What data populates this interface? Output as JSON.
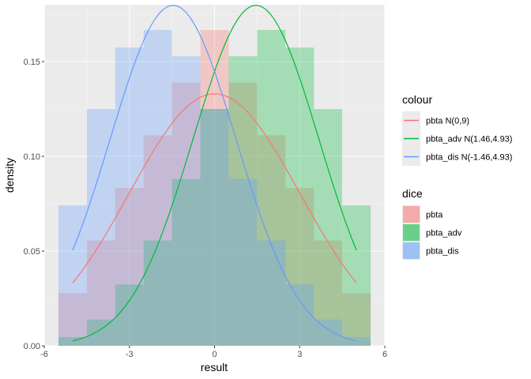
{
  "chart_data": {
    "type": "histogram+line",
    "xlabel": "result",
    "ylabel": "density",
    "xlim": [
      -6,
      6
    ],
    "ylim": [
      0,
      0.18
    ],
    "x_ticks": [
      {
        "v": -6,
        "label": "-6"
      },
      {
        "v": -3,
        "label": "-3"
      },
      {
        "v": 0,
        "label": "0"
      },
      {
        "v": 3,
        "label": "3"
      },
      {
        "v": 6,
        "label": "6"
      }
    ],
    "y_ticks": [
      {
        "v": 0.0,
        "label": "0.00"
      },
      {
        "v": 0.05,
        "label": "0.05"
      },
      {
        "v": 0.1,
        "label": "0.10"
      },
      {
        "v": 0.15,
        "label": "0.15"
      }
    ],
    "x_minor": [
      -4.5,
      -1.5,
      1.5,
      4.5
    ],
    "y_minor": [
      0.025,
      0.075,
      0.125,
      0.175
    ],
    "bin_width": 1,
    "bin_centers": [
      -5,
      -4,
      -3,
      -2,
      -1,
      0,
      1,
      2,
      3,
      4,
      5
    ],
    "histogram_series": [
      {
        "name": "pbta",
        "color": "#F8766D",
        "values": [
          0.0278,
          0.0556,
          0.0833,
          0.1111,
          0.1389,
          0.1667,
          0.1389,
          0.1111,
          0.0833,
          0.0556,
          0.0278
        ]
      },
      {
        "name": "pbta_adv",
        "color": "#00BA38",
        "values": [
          0.0046,
          0.0139,
          0.0324,
          0.0556,
          0.088,
          0.125,
          0.1528,
          0.1667,
          0.1574,
          0.125,
          0.0741
        ]
      },
      {
        "name": "pbta_dis",
        "color": "#619CFF",
        "values": [
          0.0741,
          0.125,
          0.1574,
          0.1667,
          0.1528,
          0.125,
          0.088,
          0.0556,
          0.0324,
          0.0139,
          0.0046
        ]
      }
    ],
    "curve_series": [
      {
        "name": "pbta N(0,9)",
        "color": "#F8766D",
        "mean": 0,
        "variance": 9,
        "x_range": [
          -5,
          5
        ]
      },
      {
        "name": "pbta_adv N(1.46,4.93)",
        "color": "#00BA38",
        "mean": 1.46,
        "variance": 4.93,
        "x_range": [
          -5,
          5
        ]
      },
      {
        "name": "pbta_dis N(-1.46,4.93)",
        "color": "#619CFF",
        "mean": -1.46,
        "variance": 4.93,
        "x_range": [
          -5,
          5
        ]
      }
    ],
    "legends": [
      {
        "title": "colour",
        "kind": "line",
        "entries": [
          "pbta N(0,9)",
          "pbta_adv N(1.46,4.93)",
          "pbta_dis N(-1.46,4.93)"
        ]
      },
      {
        "title": "dice",
        "kind": "fill",
        "entries": [
          "pbta",
          "pbta_adv",
          "pbta_dis"
        ]
      }
    ],
    "legend_position": "right",
    "grid": true
  },
  "colors": {
    "panel_background": "#EBEBEB",
    "grid_major": "#FFFFFF",
    "grid_minor": "#F7F7F7"
  }
}
